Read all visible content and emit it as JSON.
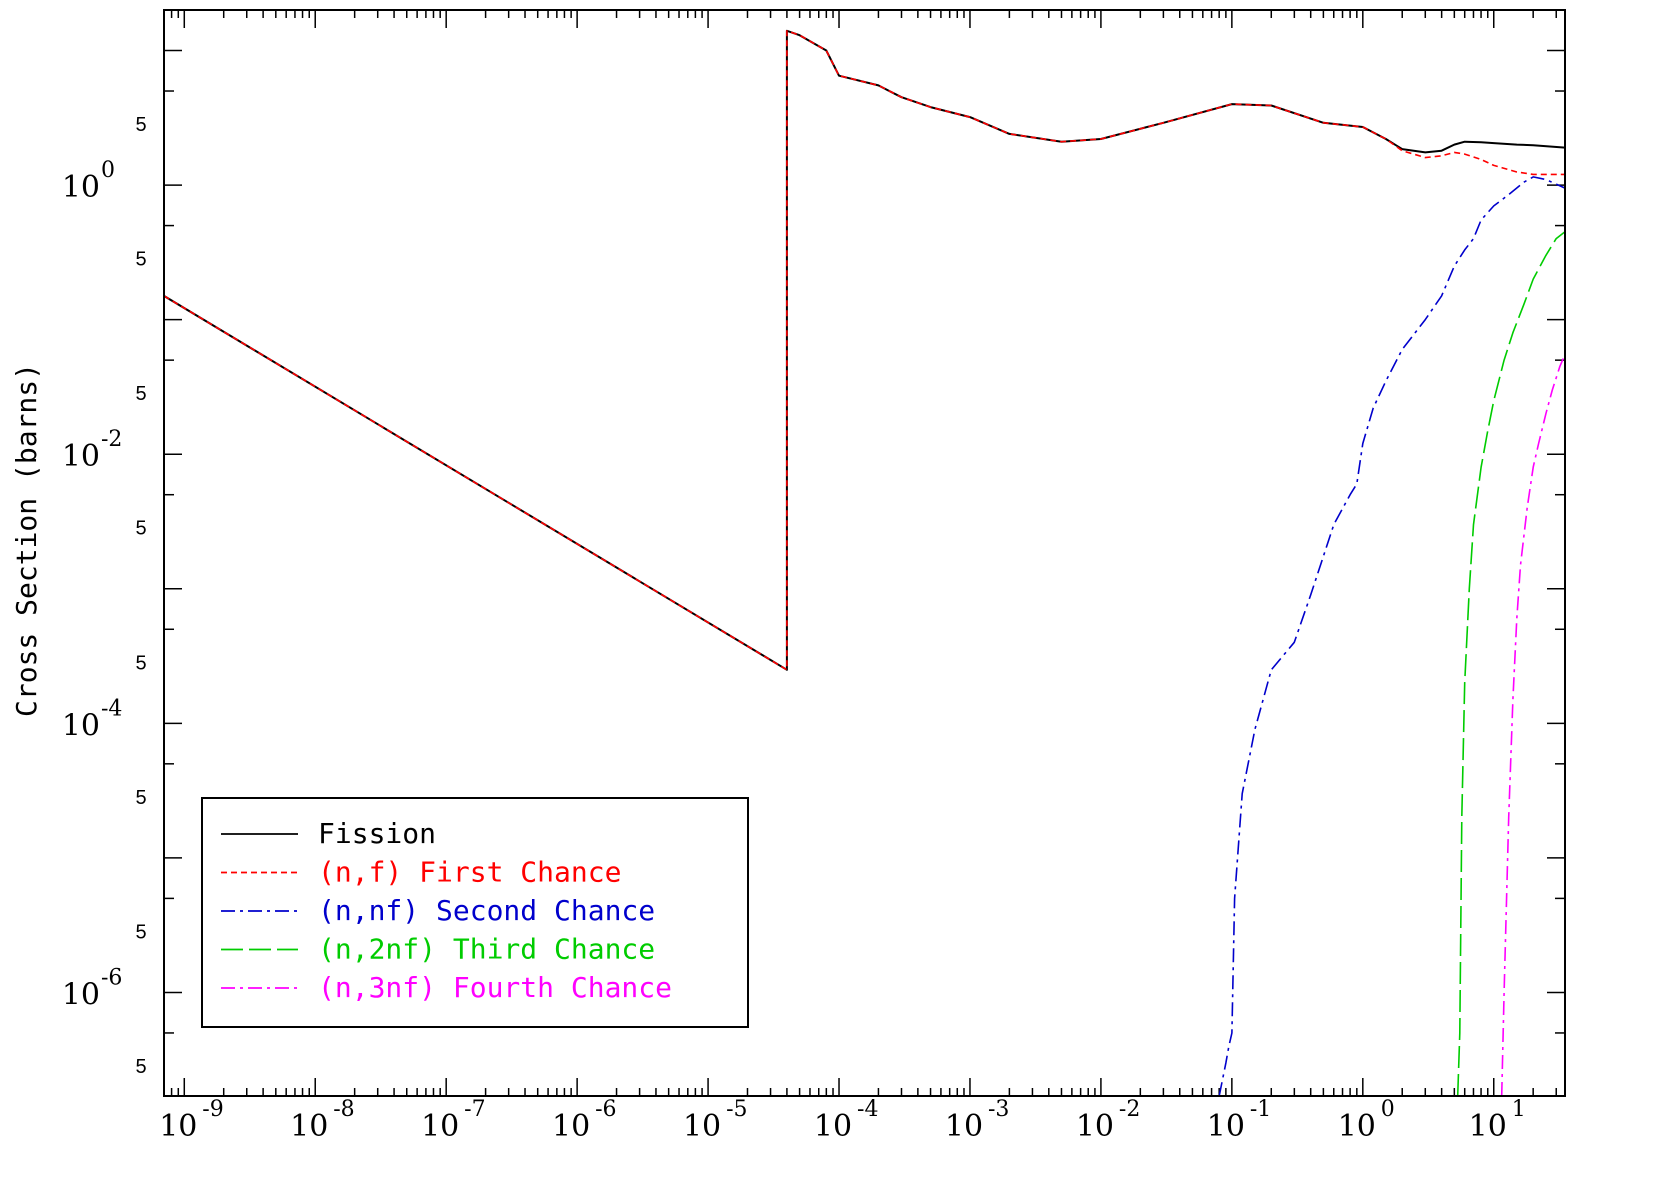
{
  "chart_data": {
    "type": "line",
    "title": "",
    "xlabel": "",
    "ylabel": "Cross Section (barns)",
    "x_scale": "log",
    "y_scale": "log",
    "xlim": [
      7e-10,
      35
    ],
    "ylim": [
      1.7e-07,
      20
    ],
    "x_ticks": [
      {
        "value": 1e-09,
        "base": "10",
        "exp": "-9"
      },
      {
        "value": 1e-08,
        "base": "10",
        "exp": "-8"
      },
      {
        "value": 1e-07,
        "base": "10",
        "exp": "-7"
      },
      {
        "value": 1e-06,
        "base": "10",
        "exp": "-6"
      },
      {
        "value": 1e-05,
        "base": "10",
        "exp": "-5"
      },
      {
        "value": 0.0001,
        "base": "10",
        "exp": "-4"
      },
      {
        "value": 0.001,
        "base": "10",
        "exp": "-3"
      },
      {
        "value": 0.01,
        "base": "10",
        "exp": "-2"
      },
      {
        "value": 0.1,
        "base": "10",
        "exp": "-1"
      },
      {
        "value": 1,
        "base": "10",
        "exp": "0"
      },
      {
        "value": 10,
        "base": "10",
        "exp": "1"
      }
    ],
    "y_ticks": [
      {
        "value": 1,
        "base": "10",
        "exp": "0"
      },
      {
        "value": 0.01,
        "base": "10",
        "exp": "-2"
      },
      {
        "value": 0.0001,
        "base": "10",
        "exp": "-4"
      },
      {
        "value": 1e-06,
        "base": "10",
        "exp": "-6"
      }
    ],
    "y_minor_labels": [
      {
        "value": 5,
        "label": "5"
      },
      {
        "value": 0.5,
        "label": "5"
      },
      {
        "value": 0.05,
        "label": "5"
      },
      {
        "value": 0.005,
        "label": "5"
      },
      {
        "value": 0.0005,
        "label": "5"
      },
      {
        "value": 5e-05,
        "label": "5"
      },
      {
        "value": 5e-06,
        "label": "5"
      },
      {
        "value": 5e-07,
        "label": "5"
      }
    ],
    "legend": {
      "position": "bottom-left",
      "entries": [
        {
          "label": "Fission",
          "color": "#000000",
          "dash": "solid"
        },
        {
          "label": "(n,f) First Chance",
          "color": "#ff0000",
          "dash": "short-dash"
        },
        {
          "label": "(n,nf) Second Chance",
          "color": "#0000cc",
          "dash": "dash-dot"
        },
        {
          "label": "(n,2nf) Third Chance",
          "color": "#00cc00",
          "dash": "long-dash"
        },
        {
          "label": "(n,3nf) Fourth Chance",
          "color": "#ff00ff",
          "dash": "dash-dot"
        }
      ]
    },
    "series": [
      {
        "name": "Fission",
        "color": "#000000",
        "x": [
          7e-10,
          4e-05,
          4.001e-05,
          5e-05,
          8e-05,
          0.0001,
          0.0002,
          0.0003,
          0.0005,
          0.001,
          0.002,
          0.005,
          0.01,
          0.03,
          0.1,
          0.2,
          0.5,
          1,
          1.5,
          2,
          3,
          4,
          5,
          6,
          8,
          10,
          15,
          20,
          35
        ],
        "y": [
          0.15,
          0.00025,
          14,
          13,
          10,
          6.5,
          5.5,
          4.5,
          3.8,
          3.2,
          2.4,
          2.1,
          2.2,
          2.9,
          4,
          3.9,
          2.9,
          2.7,
          2.2,
          1.85,
          1.75,
          1.8,
          2.0,
          2.1,
          2.08,
          2.05,
          2.0,
          1.98,
          1.9
        ]
      },
      {
        "name": "(n,f) First Chance",
        "color": "#ff0000",
        "x": [
          7e-10,
          4e-05,
          4.001e-05,
          5e-05,
          8e-05,
          0.0001,
          0.0002,
          0.0003,
          0.0005,
          0.001,
          0.002,
          0.005,
          0.01,
          0.03,
          0.1,
          0.2,
          0.5,
          1,
          1.5,
          2,
          3,
          4,
          5,
          6,
          8,
          10,
          15,
          20,
          35
        ],
        "y": [
          0.15,
          0.00025,
          14,
          13,
          10,
          6.5,
          5.5,
          4.5,
          3.8,
          3.2,
          2.4,
          2.1,
          2.2,
          2.9,
          4,
          3.9,
          2.9,
          2.7,
          2.2,
          1.8,
          1.6,
          1.65,
          1.75,
          1.7,
          1.55,
          1.4,
          1.25,
          1.2,
          1.2
        ]
      },
      {
        "name": "(n,nf) Second Chance",
        "color": "#0000cc",
        "x": [
          0.08,
          0.09,
          0.095,
          0.1,
          0.105,
          0.12,
          0.15,
          0.2,
          0.3,
          0.4,
          0.6,
          0.8,
          0.9,
          1.0,
          1.2,
          1.5,
          2,
          3,
          4,
          5,
          6,
          7,
          8,
          10,
          13,
          17,
          20,
          25,
          35
        ],
        "y": [
          1.7e-07,
          3e-07,
          4e-07,
          5e-07,
          5e-06,
          3e-05,
          9e-05,
          0.00025,
          0.0004,
          0.0009,
          0.003,
          0.005,
          0.006,
          0.012,
          0.022,
          0.035,
          0.06,
          0.1,
          0.15,
          0.25,
          0.33,
          0.4,
          0.55,
          0.7,
          0.85,
          1.05,
          1.15,
          1.1,
          0.95
        ]
      },
      {
        "name": "(n,2nf) Third Chance",
        "color": "#00cc00",
        "x": [
          5.3,
          5.5,
          5.7,
          6,
          6.5,
          7,
          8,
          9,
          10,
          12,
          14,
          17,
          20,
          25,
          30,
          35
        ],
        "y": [
          1.7e-07,
          5e-07,
          2e-05,
          0.0002,
          0.001,
          0.003,
          0.008,
          0.015,
          0.025,
          0.05,
          0.08,
          0.13,
          0.2,
          0.3,
          0.4,
          0.45
        ]
      },
      {
        "name": "(n,3nf) Fourth Chance",
        "color": "#ff00ff",
        "x": [
          11.5,
          12,
          13,
          14,
          15,
          16,
          18,
          20,
          22,
          25,
          28,
          32,
          35
        ],
        "y": [
          1.7e-07,
          1e-06,
          2e-05,
          0.00015,
          0.0006,
          0.0015,
          0.004,
          0.008,
          0.012,
          0.02,
          0.03,
          0.045,
          0.055
        ]
      }
    ]
  }
}
